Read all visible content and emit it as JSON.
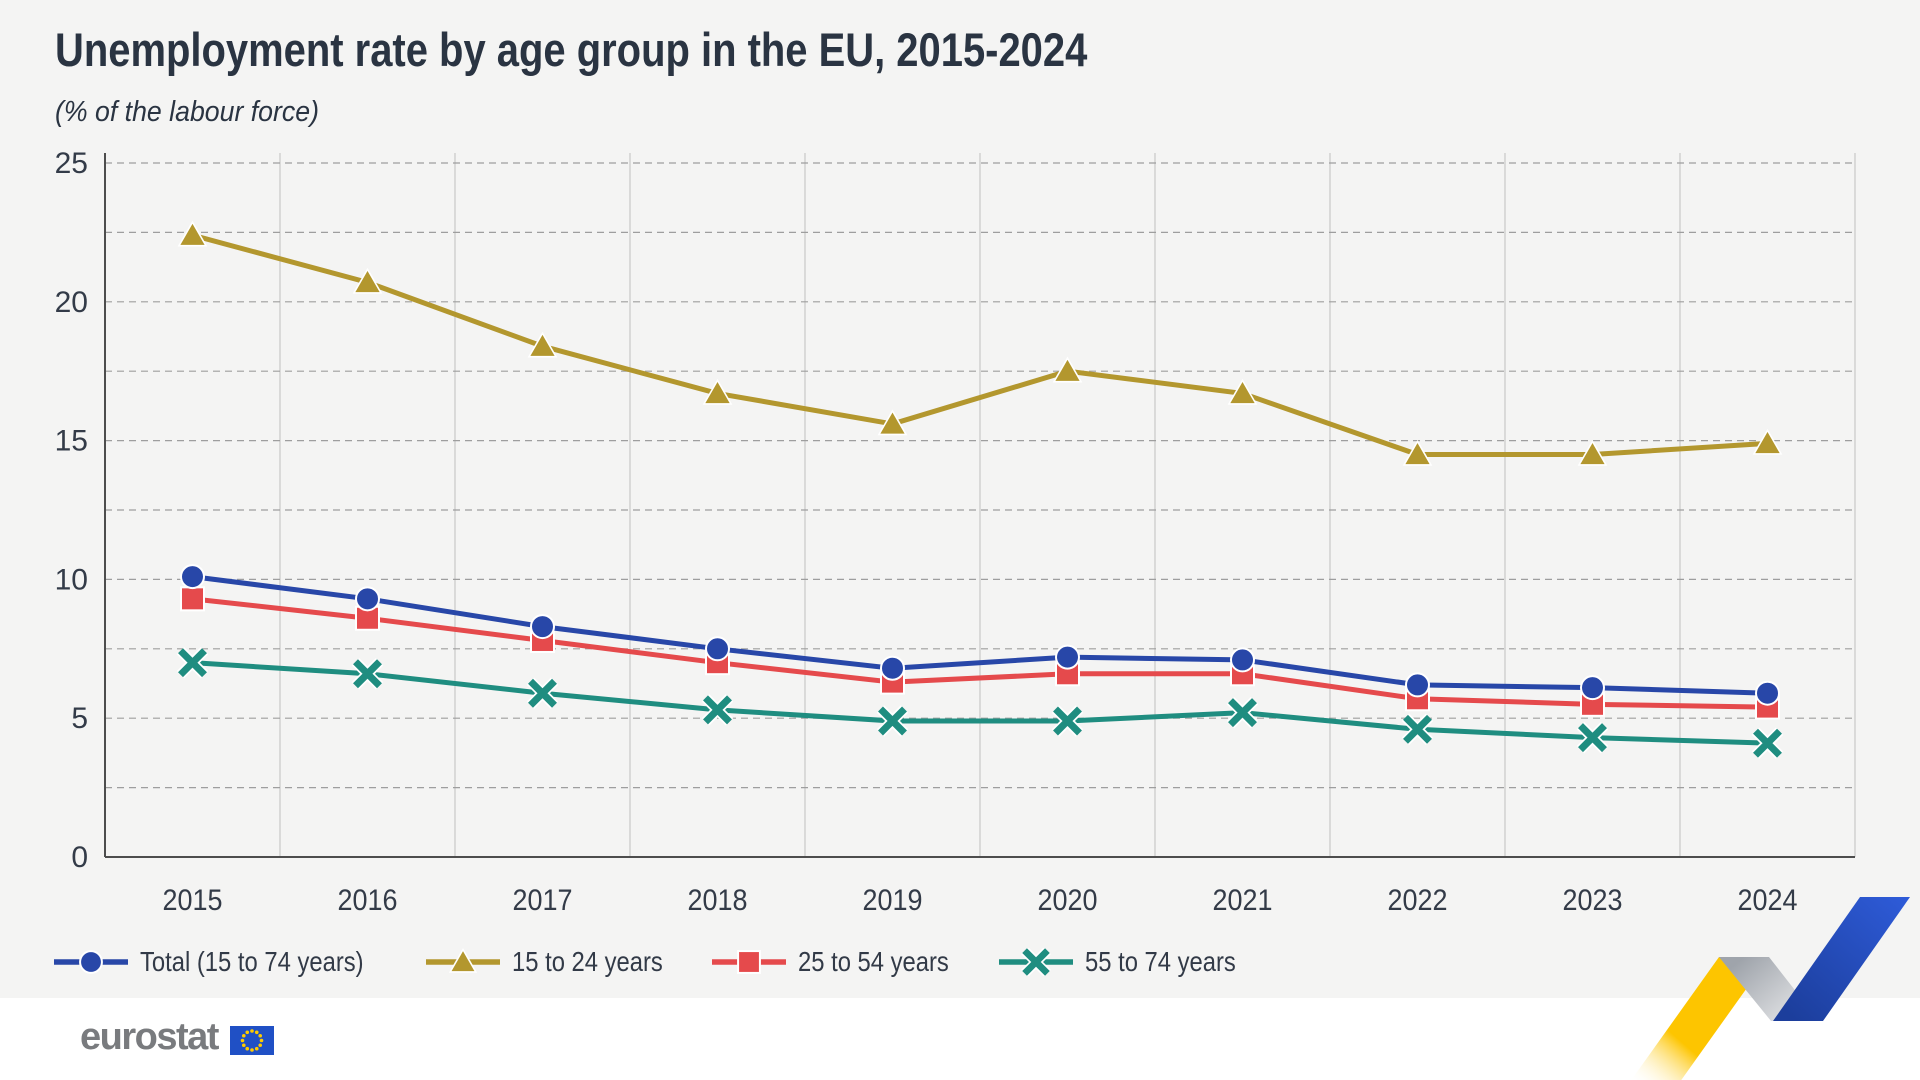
{
  "chart_data": {
    "type": "line",
    "title": "Unemployment rate by age group in the EU, 2015-2024",
    "subtitle": "(% of the labour force)",
    "categories": [
      "2015",
      "2016",
      "2017",
      "2018",
      "2019",
      "2020",
      "2021",
      "2022",
      "2023",
      "2024"
    ],
    "series": [
      {
        "name": "Total (15 to 74 years)",
        "marker": "circle",
        "color": "#2847a8",
        "values": [
          10.1,
          9.3,
          8.3,
          7.5,
          6.8,
          7.2,
          7.1,
          6.2,
          6.1,
          5.9
        ]
      },
      {
        "name": "15 to 24 years",
        "marker": "triangle",
        "color": "#b3972e",
        "values": [
          22.4,
          20.7,
          18.4,
          16.7,
          15.6,
          17.5,
          16.7,
          14.5,
          14.5,
          14.9
        ]
      },
      {
        "name": "25 to 54 years",
        "marker": "square",
        "color": "#e54a4c",
        "values": [
          9.3,
          8.6,
          7.8,
          7.0,
          6.3,
          6.6,
          6.6,
          5.7,
          5.5,
          5.4
        ]
      },
      {
        "name": "55 to 74 years",
        "marker": "xmark",
        "color": "#1f8d80",
        "values": [
          7.0,
          6.6,
          5.9,
          5.3,
          4.9,
          4.9,
          5.2,
          4.6,
          4.3,
          4.1
        ]
      }
    ],
    "ylim": [
      0,
      25
    ],
    "yticks": [
      0,
      5,
      10,
      15,
      20,
      25
    ],
    "grid": "horizontal dashed every 2.5, vertical solid per year column",
    "legend_position": "bottom"
  },
  "colors": {
    "background_panel": "#f4f4f3",
    "text": "#2a3442",
    "tick_text": "#333b48",
    "axis_line": "#4d4d4d",
    "grid_dashed": "#9e9e9e",
    "grid_vertical": "#cbcbcb"
  },
  "branding": {
    "logo_text": "eurostat",
    "flag_blue": "#2050c5",
    "flag_star_yellow": "#ffcc00",
    "ribbon": {
      "yellow": "#fdc500",
      "gray_light": "#e6e7e9",
      "gray_dark": "#9fa4ab",
      "blue_bright": "#2e5bd8",
      "blue_dark": "#1c3e9c"
    }
  }
}
